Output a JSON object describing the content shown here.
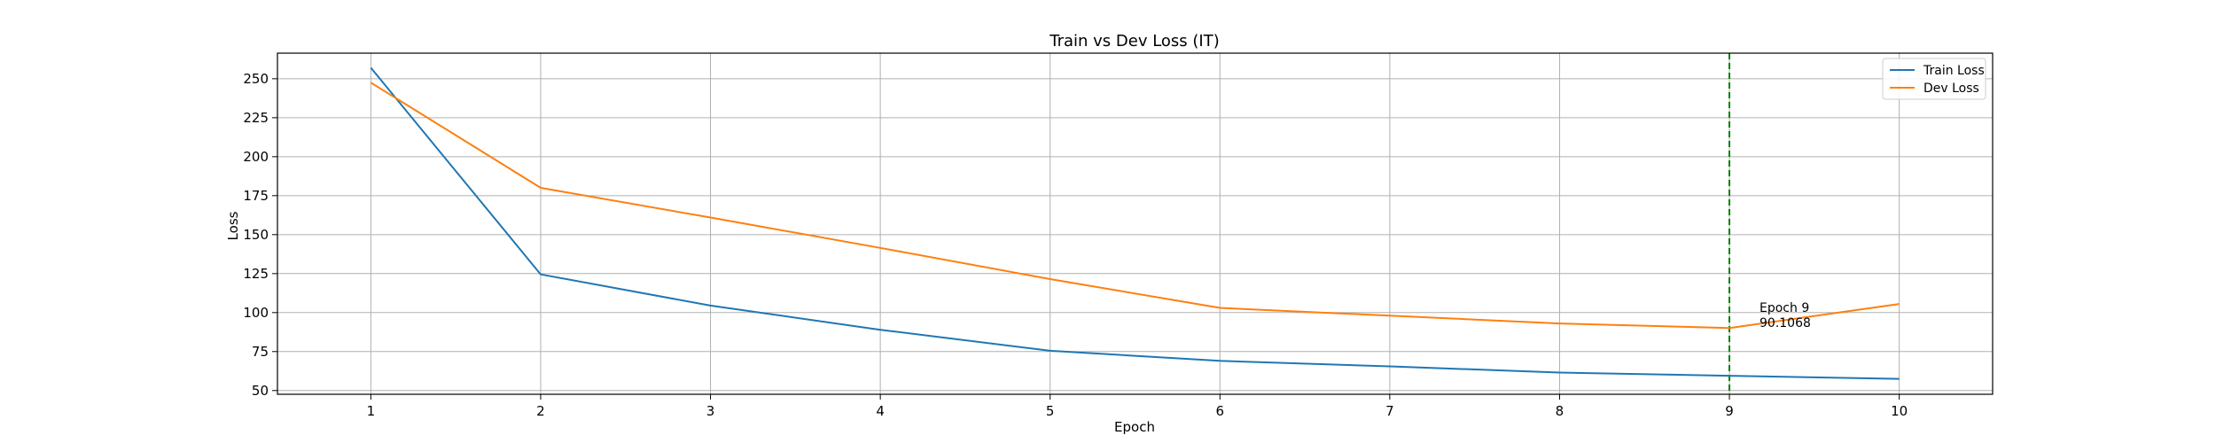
{
  "chart_data": {
    "type": "line",
    "title": "Train vs Dev Loss (IT)",
    "xlabel": "Epoch",
    "ylabel": "Loss",
    "x": [
      1,
      2,
      3,
      4,
      5,
      6,
      7,
      8,
      9,
      10
    ],
    "x_ticks": [
      1,
      2,
      3,
      4,
      5,
      6,
      7,
      8,
      9,
      10
    ],
    "y_ticks": [
      50,
      75,
      100,
      125,
      150,
      175,
      200,
      225,
      250
    ],
    "xlim": [
      0.45,
      10.55
    ],
    "ylim": [
      47.6,
      266.4
    ],
    "grid": true,
    "legend_position": "top-right",
    "series": [
      {
        "name": "Train Loss",
        "color": "#1f77b4",
        "values": [
          257.0,
          124.5,
          104.5,
          89.0,
          75.5,
          69.0,
          65.5,
          61.5,
          59.5,
          57.5
        ]
      },
      {
        "name": "Dev Loss",
        "color": "#ff7f0e",
        "values": [
          247.5,
          180.0,
          161.0,
          141.5,
          121.5,
          103.0,
          98.0,
          93.0,
          90.1068,
          105.5
        ]
      }
    ],
    "reference_line": {
      "x": 9,
      "color": "#008000",
      "style": "dashed"
    },
    "annotation": {
      "x": 9,
      "y": 90.1068,
      "lines": [
        "Epoch 9",
        "90.1068"
      ]
    }
  }
}
